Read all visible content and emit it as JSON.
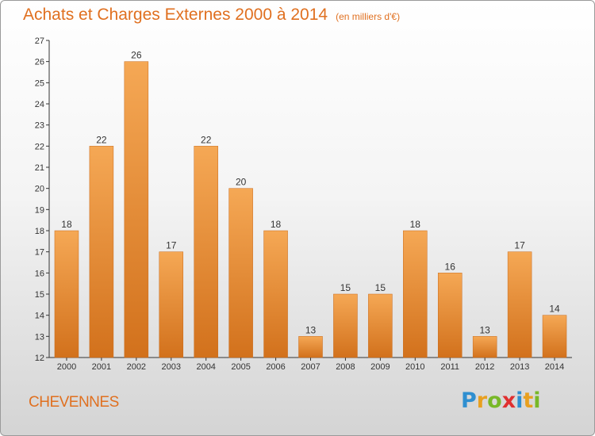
{
  "header": {
    "title": "Achats et Charges Externes 2000 à 2014",
    "unit": "(en milliers d'€)"
  },
  "footer": {
    "commune": "CHEVENNES",
    "logo_text": "Proxiti"
  },
  "chart_data": {
    "type": "bar",
    "title": "Achats et Charges Externes 2000 à 2014",
    "subtitle": "(en milliers d'€)",
    "categories": [
      "2000",
      "2001",
      "2002",
      "2003",
      "2004",
      "2005",
      "2006",
      "2007",
      "2008",
      "2009",
      "2010",
      "2011",
      "2012",
      "2013",
      "2014"
    ],
    "values": [
      18,
      22,
      26,
      17,
      22,
      20,
      18,
      13,
      15,
      15,
      18,
      16,
      13,
      17,
      14
    ],
    "xlabel": "",
    "ylabel": "",
    "ylim": [
      12,
      27
    ],
    "yticks": [
      12,
      13,
      14,
      15,
      16,
      17,
      18,
      19,
      20,
      21,
      22,
      23,
      24,
      25,
      26,
      27
    ],
    "grid": false,
    "bar_color_top": "#f5a855",
    "bar_color_bottom": "#d2711c"
  }
}
